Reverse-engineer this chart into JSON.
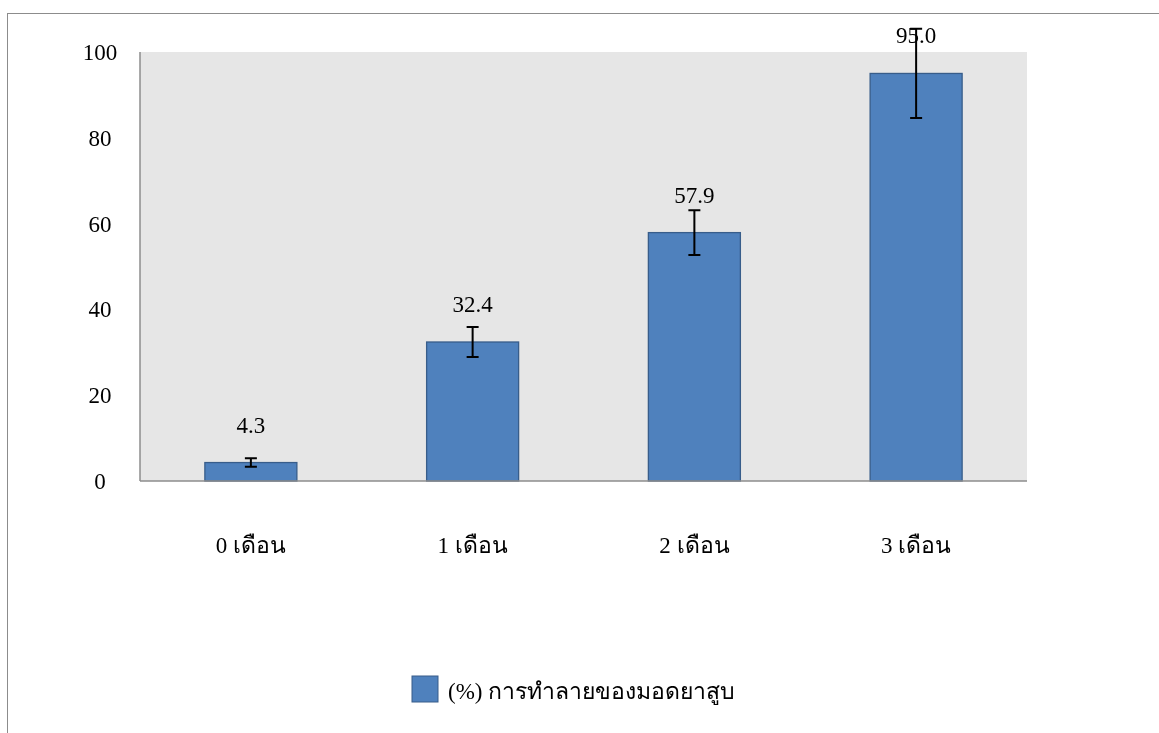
{
  "chart_data": {
    "type": "bar",
    "categories": [
      "0 เดือน",
      "1 เดือน",
      "2 เดือน",
      "3 เดือน"
    ],
    "series": [
      {
        "name": "(%) การทำลายของมอดยาสูบ",
        "color": "#4f81bd",
        "values": [
          4.3,
          32.4,
          57.9,
          95.0
        ],
        "errors": [
          1,
          3.5,
          5.2,
          10.4
        ],
        "value_labels": [
          "4.3",
          "32.4",
          "57.9",
          "95.0"
        ]
      }
    ],
    "ylim": [
      0,
      100
    ],
    "yticks": [
      0,
      20,
      40,
      60,
      80,
      100
    ],
    "grid": false,
    "legend": "bottom"
  }
}
